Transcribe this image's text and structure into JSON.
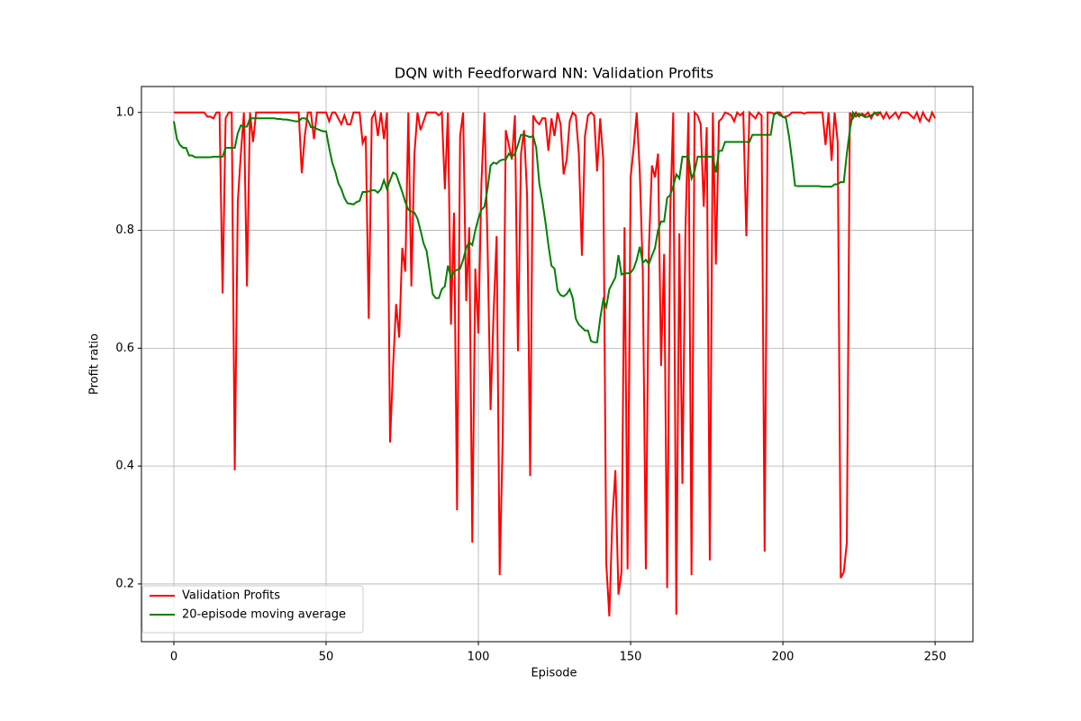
{
  "chart_data": {
    "type": "line",
    "title": "DQN with Feedforward NN: Validation Profits",
    "xlabel": "Episode",
    "ylabel": "Profit ratio",
    "x": [
      0,
      1,
      2,
      3,
      4,
      5,
      6,
      7,
      8,
      9,
      10,
      11,
      12,
      13,
      14,
      15,
      16,
      17,
      18,
      19,
      20,
      21,
      22,
      23,
      24,
      25,
      26,
      27,
      28,
      29,
      30,
      31,
      32,
      33,
      34,
      35,
      36,
      37,
      38,
      39,
      40,
      41,
      42,
      43,
      44,
      45,
      46,
      47,
      48,
      49,
      50,
      51,
      52,
      53,
      54,
      55,
      56,
      57,
      58,
      59,
      60,
      61,
      62,
      63,
      64,
      65,
      66,
      67,
      68,
      69,
      70,
      71,
      72,
      73,
      74,
      75,
      76,
      77,
      78,
      79,
      80,
      81,
      82,
      83,
      84,
      85,
      86,
      87,
      88,
      89,
      90,
      91,
      92,
      93,
      94,
      95,
      96,
      97,
      98,
      99,
      100,
      101,
      102,
      103,
      104,
      105,
      106,
      107,
      108,
      109,
      110,
      111,
      112,
      113,
      114,
      115,
      116,
      117,
      118,
      119,
      120,
      121,
      122,
      123,
      124,
      125,
      126,
      127,
      128,
      129,
      130,
      131,
      132,
      133,
      134,
      135,
      136,
      137,
      138,
      139,
      140,
      141,
      142,
      143,
      144,
      145,
      146,
      147,
      148,
      149,
      150,
      151,
      152,
      153,
      154,
      155,
      156,
      157,
      158,
      159,
      160,
      161,
      162,
      163,
      164,
      165,
      166,
      167,
      168,
      169,
      170,
      171,
      172,
      173,
      174,
      175,
      176,
      177,
      178,
      179,
      180,
      181,
      182,
      183,
      184,
      185,
      186,
      187,
      188,
      189,
      190,
      191,
      192,
      193,
      194,
      195,
      196,
      197,
      198,
      199,
      200,
      201,
      202,
      203,
      204,
      205,
      206,
      207,
      208,
      209,
      210,
      211,
      212,
      213,
      214,
      215,
      216,
      217,
      218,
      219,
      220,
      221,
      222,
      223,
      224,
      225,
      226,
      227,
      228,
      229,
      230,
      231,
      232,
      233,
      234,
      235,
      236,
      237,
      238,
      239,
      240,
      241,
      242,
      243,
      244,
      245,
      246,
      247,
      248,
      249,
      250
    ],
    "series": [
      {
        "name": "Validation Profits",
        "color": "#ff0000",
        "values": [
          1,
          1,
          1,
          1,
          1,
          1,
          1,
          1,
          1,
          1,
          1,
          0.993,
          0.993,
          0.99,
          1,
          1,
          0.693,
          0.99,
          1,
          1,
          0.393,
          0.85,
          0.93,
          1,
          0.705,
          1,
          0.95,
          1,
          1,
          1,
          1,
          1,
          1,
          1,
          1,
          1,
          1,
          1,
          1,
          1,
          1,
          1,
          0.897,
          0.96,
          1,
          1,
          0.955,
          1,
          1,
          1,
          1,
          0.985,
          1,
          1,
          0.99,
          0.98,
          0.995,
          0.98,
          0.98,
          1,
          1,
          1,
          0.948,
          0.96,
          0.65,
          0.99,
          1,
          0.96,
          1,
          0.955,
          1,
          0.44,
          0.57,
          0.675,
          0.618,
          0.77,
          0.73,
          1,
          0.705,
          0.93,
          1,
          0.97,
          0.985,
          1,
          1,
          1,
          1,
          0.995,
          1,
          0.87,
          1,
          0.64,
          0.83,
          0.325,
          0.96,
          1,
          0.68,
          0.805,
          0.27,
          0.735,
          0.625,
          0.88,
          1,
          0.78,
          0.495,
          0.66,
          0.79,
          0.215,
          0.45,
          0.97,
          0.945,
          0.92,
          0.995,
          0.595,
          0.93,
          0.97,
          0.86,
          0.383,
          0.995,
          0.985,
          0.98,
          0.99,
          0.99,
          0.935,
          0.99,
          0.96,
          1,
          0.98,
          0.895,
          0.92,
          0.985,
          1,
          0.995,
          0.93,
          0.757,
          0.96,
          0.995,
          1,
          0.995,
          0.9,
          0.99,
          0.92,
          0.235,
          0.145,
          0.31,
          0.393,
          0.182,
          0.22,
          0.805,
          0.225,
          0.89,
          0.94,
          1,
          0.9,
          0.73,
          0.225,
          0.77,
          0.91,
          0.89,
          0.93,
          0.57,
          0.76,
          0.193,
          0.83,
          1,
          0.148,
          0.795,
          0.37,
          0.8,
          1,
          0.215,
          1,
          0.995,
          0.98,
          0.84,
          0.975,
          0.24,
          1,
          0.742,
          0.985,
          0.99,
          1,
          0.998,
          0.995,
          0.985,
          1,
          0.995,
          1,
          0.79,
          1,
          0.995,
          0.99,
          1,
          0.995,
          0.255,
          1,
          1,
          0.998,
          1,
          1,
          0.992,
          0.993,
          0.995,
          1,
          1,
          1,
          1,
          0.998,
          1,
          1,
          1,
          1,
          1,
          1,
          0.945,
          1,
          0.918,
          1,
          0.95,
          0.21,
          0.22,
          0.27,
          1,
          0.99,
          1,
          0.993,
          0.998,
          0.995,
          1,
          0.99,
          1,
          0.995,
          1,
          0.99,
          1,
          0.99,
          0.995,
          1,
          0.99,
          1,
          1,
          1,
          0.995,
          0.99,
          1,
          0.985,
          1,
          0.99,
          0.985,
          1,
          0.99
        ]
      },
      {
        "name": "20-episode moving average",
        "color": "#008000",
        "values": [
          0.985,
          0.955,
          0.945,
          0.94,
          0.94,
          0.927,
          0.927,
          0.924,
          0.924,
          0.924,
          0.924,
          0.924,
          0.924,
          0.925,
          0.925,
          0.925,
          0.925,
          0.94,
          0.94,
          0.94,
          0.94,
          0.965,
          0.978,
          0.976,
          0.976,
          0.99,
          0.99,
          0.99,
          0.99,
          0.99,
          0.99,
          0.99,
          0.99,
          0.99,
          0.989,
          0.989,
          0.988,
          0.988,
          0.987,
          0.986,
          0.985,
          0.985,
          0.99,
          0.99,
          0.987,
          0.975,
          0.975,
          0.972,
          0.97,
          0.968,
          0.968,
          0.94,
          0.915,
          0.9,
          0.88,
          0.87,
          0.855,
          0.846,
          0.845,
          0.844,
          0.848,
          0.85,
          0.865,
          0.865,
          0.866,
          0.868,
          0.868,
          0.864,
          0.87,
          0.885,
          0.87,
          0.885,
          0.898,
          0.895,
          0.88,
          0.865,
          0.848,
          0.835,
          0.832,
          0.83,
          0.82,
          0.8,
          0.778,
          0.765,
          0.73,
          0.692,
          0.685,
          0.685,
          0.7,
          0.705,
          0.74,
          0.72,
          0.73,
          0.733,
          0.735,
          0.75,
          0.77,
          0.78,
          0.775,
          0.8,
          0.82,
          0.835,
          0.84,
          0.87,
          0.91,
          0.915,
          0.913,
          0.918,
          0.92,
          0.92,
          0.93,
          0.925,
          0.93,
          0.945,
          0.962,
          0.962,
          0.96,
          0.958,
          0.96,
          0.94,
          0.88,
          0.85,
          0.815,
          0.775,
          0.74,
          0.735,
          0.698,
          0.69,
          0.688,
          0.692,
          0.7,
          0.685,
          0.65,
          0.64,
          0.635,
          0.63,
          0.63,
          0.612,
          0.61,
          0.61,
          0.65,
          0.682,
          0.67,
          0.7,
          0.71,
          0.72,
          0.758,
          0.725,
          0.727,
          0.727,
          0.728,
          0.735,
          0.75,
          0.772,
          0.745,
          0.75,
          0.743,
          0.757,
          0.77,
          0.8,
          0.815,
          0.815,
          0.855,
          0.86,
          0.875,
          0.895,
          0.888,
          0.925,
          0.925,
          0.925,
          0.888,
          0.9,
          0.925,
          0.925,
          0.925,
          0.925,
          0.925,
          0.925,
          0.898,
          0.935,
          0.935,
          0.95,
          0.95,
          0.95,
          0.95,
          0.95,
          0.95,
          0.95,
          0.95,
          0.95,
          0.962,
          0.962,
          0.962,
          0.962,
          0.962,
          0.962,
          0.962,
          0.995,
          1.0,
          0.995,
          0.993,
          0.99,
          0.96,
          0.92,
          0.876,
          0.875,
          0.875,
          0.875,
          0.875,
          0.875,
          0.875,
          0.875,
          0.875,
          0.874,
          0.874,
          0.874,
          0.874,
          0.878,
          0.878,
          0.882,
          0.882,
          0.93,
          0.97,
          1.0,
          0.993,
          0.998,
          0.995,
          0.992,
          0.993,
          0.995,
          0.998,
          1.0,
          1.0,
          null,
          null,
          null,
          null,
          null,
          null,
          null,
          null,
          null,
          null,
          null,
          null,
          null,
          null,
          null,
          null,
          null,
          null
        ]
      }
    ],
    "xlim": [
      -10.65,
      262.4
    ],
    "ylim": [
      0.102,
      1.044
    ],
    "xticks": [
      0,
      50,
      100,
      150,
      200,
      250
    ],
    "yticks": [
      0.2,
      0.4,
      0.6,
      0.8,
      {
        "value": 1,
        "label": "1.0"
      }
    ],
    "grid": true,
    "legend": "lower left"
  }
}
